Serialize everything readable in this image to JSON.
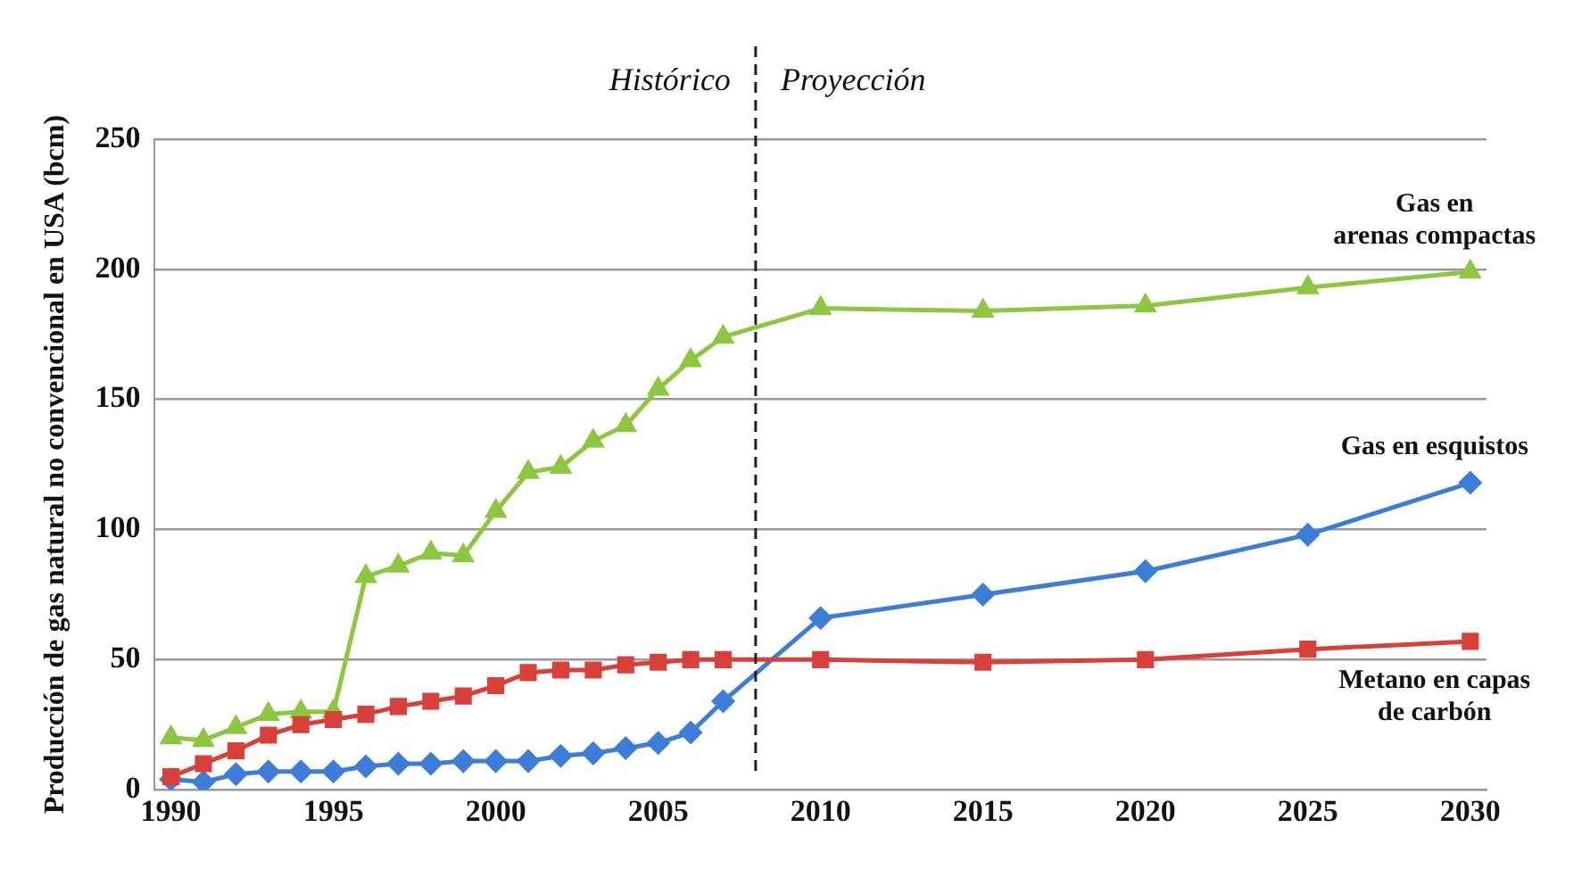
{
  "chart_data": {
    "type": "line",
    "ylabel": "Producción de gas natural no convencional en USA (bcm)",
    "x": [
      1990,
      1991,
      1992,
      1993,
      1994,
      1995,
      1996,
      1997,
      1998,
      1999,
      2000,
      2001,
      2002,
      2003,
      2004,
      2005,
      2006,
      2007,
      2010,
      2015,
      2020,
      2025,
      2030
    ],
    "xlim": [
      1989.5,
      2030.5
    ],
    "xticks": [
      1990,
      1995,
      2000,
      2005,
      2010,
      2015,
      2020,
      2025,
      2030
    ],
    "ylim": [
      0,
      250
    ],
    "yticks": [
      0,
      50,
      100,
      150,
      200,
      250
    ],
    "grid": "y",
    "series": [
      {
        "name": "Gas en arenas compactas",
        "color": "#8dc63f",
        "marker": "triangle",
        "values": [
          20,
          19,
          24,
          29,
          30,
          30,
          82,
          86,
          91,
          90,
          107,
          122,
          124,
          134,
          140,
          154,
          165,
          174,
          185,
          184,
          186,
          193,
          199
        ]
      },
      {
        "name": "Gas en esquistos",
        "color": "#3b7dd8",
        "marker": "diamond",
        "values": [
          4,
          3,
          6,
          7,
          7,
          7,
          9,
          10,
          10,
          11,
          11,
          11,
          13,
          14,
          16,
          18,
          22,
          34,
          66,
          75,
          84,
          98,
          118
        ]
      },
      {
        "name": "Metano en capas de carbón",
        "color": "#d9403a",
        "marker": "square",
        "values": [
          5,
          10,
          15,
          21,
          25,
          27,
          29,
          32,
          34,
          36,
          40,
          45,
          46,
          46,
          48,
          49,
          50,
          50,
          50,
          49,
          50,
          54,
          57
        ]
      }
    ],
    "ref_lines": [
      {
        "axis": "x",
        "value": 2008,
        "color": "#222222",
        "line_style": "dashed"
      }
    ],
    "annotations": [
      "Histórico",
      "Proyección"
    ]
  }
}
